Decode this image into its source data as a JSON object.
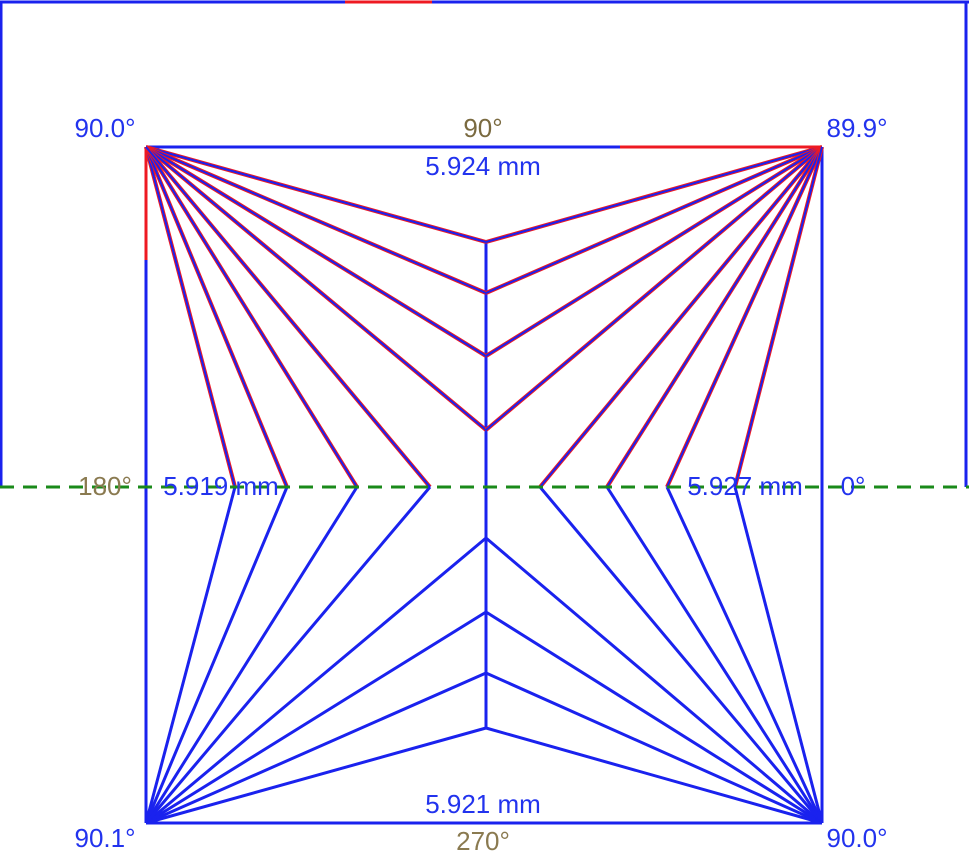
{
  "corner_angles": {
    "top_left": "90.0°",
    "top_right": "89.9°",
    "bottom_left": "90.1°",
    "bottom_right": "90.0°"
  },
  "directions": {
    "top": "90°",
    "left": "180°",
    "right": "0°",
    "bottom": "270°"
  },
  "measurements": {
    "top": "5.924 mm",
    "left": "5.919 mm",
    "right": "5.927 mm",
    "bottom": "5.921 mm"
  }
}
